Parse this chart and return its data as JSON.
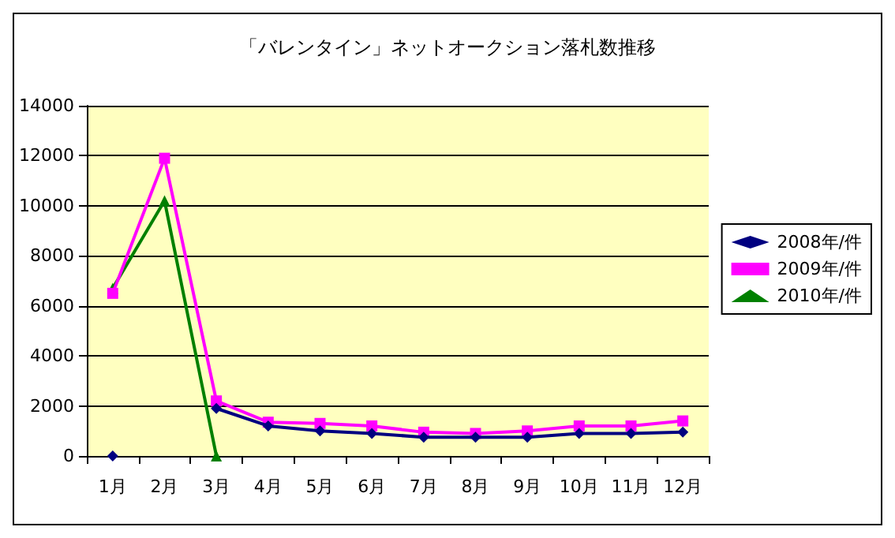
{
  "chart_data": {
    "type": "line",
    "title": "「バレンタイン」ネットオークション落札数推移",
    "categories": [
      "1月",
      "2月",
      "3月",
      "4月",
      "5月",
      "6月",
      "7月",
      "8月",
      "9月",
      "10月",
      "11月",
      "12月"
    ],
    "series": [
      {
        "name": "2008年/件",
        "color": "#000080",
        "marker": "diamond",
        "values": [
          0,
          null,
          1900,
          1200,
          1000,
          900,
          750,
          750,
          750,
          900,
          900,
          950
        ]
      },
      {
        "name": "2009年/件",
        "color": "#ff00ff",
        "marker": "square",
        "values": [
          6500,
          11900,
          2200,
          1350,
          1300,
          1200,
          950,
          900,
          1000,
          1200,
          1200,
          1400
        ]
      },
      {
        "name": "2010年/件",
        "color": "#008000",
        "marker": "triangle",
        "values": [
          6700,
          10200,
          0,
          null,
          null,
          null,
          null,
          null,
          null,
          null,
          null,
          null
        ]
      }
    ],
    "ylim": [
      0,
      14000
    ],
    "yticks": [
      0,
      2000,
      4000,
      6000,
      8000,
      10000,
      12000,
      14000
    ],
    "grid": "y",
    "legend": "right"
  }
}
